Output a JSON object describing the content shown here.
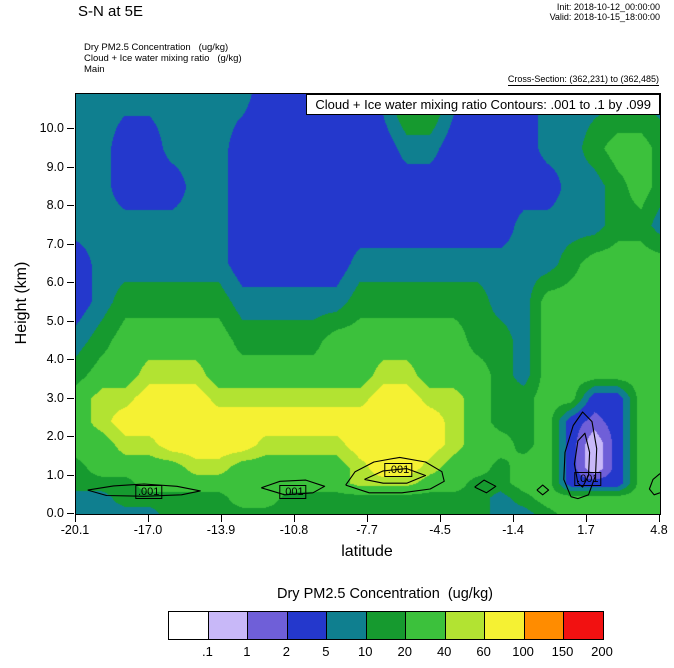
{
  "header": {
    "title": "S-N at 5E",
    "init": "Init: 2018-10-12_00:00:00",
    "valid": "Valid: 2018-10-15_18:00:00",
    "subtitle1": "Dry PM2.5 Concentration   (ug/kg)",
    "subtitle2": "Cloud + Ice water mixing ratio   (g/kg)",
    "subtitle3": "Main",
    "cross_section": "Cross-Section: (362,231) to (362,485)"
  },
  "chart_data": {
    "type": "filled_contour",
    "title": "Cloud + Ice water mixing ratio Contours: .001 to .1 by .099",
    "xlabel": "latitude",
    "ylabel": "Height (km)",
    "x_range": [
      -20.1,
      4.8
    ],
    "y_range": [
      0,
      10.91
    ],
    "x_ticks": [
      "-20.1",
      "-17.0",
      "-13.9",
      "-10.8",
      "-7.7",
      "-4.5",
      "-1.4",
      "1.7",
      "4.8"
    ],
    "y_ticks": [
      "0.0",
      "1.0",
      "2.0",
      "3.0",
      "4.0",
      "5.0",
      "6.0",
      "7.0",
      "8.0",
      "9.0",
      "10.0"
    ],
    "grid": {
      "lats": [
        -20.1,
        -19,
        -18,
        -17,
        -16,
        -15,
        -14,
        -13,
        -12,
        -11,
        -10,
        -9,
        -8,
        -7,
        -6,
        -5,
        -4,
        -3,
        -2,
        -1,
        0,
        1,
        2,
        3,
        4,
        4.8
      ],
      "heights": [
        0,
        0.4,
        0.8,
        1.2,
        1.8,
        2.4,
        3.0,
        3.6,
        4.5,
        5.5,
        6.5,
        7.5,
        8.5,
        9.5,
        10.91
      ],
      "pm25": [
        [
          7,
          7,
          7,
          7,
          15,
          15,
          15,
          15,
          15,
          15,
          15,
          15,
          15,
          15,
          15,
          15,
          15,
          15,
          7,
          7,
          15,
          30,
          30,
          30,
          30,
          30
        ],
        [
          7,
          7,
          15,
          15,
          15,
          15,
          15,
          30,
          30,
          15,
          15,
          15,
          15,
          15,
          15,
          15,
          15,
          15,
          7,
          15,
          30,
          30,
          30,
          30,
          30,
          30
        ],
        [
          15,
          15,
          15,
          30,
          30,
          30,
          30,
          30,
          30,
          30,
          30,
          30,
          50,
          50,
          50,
          30,
          30,
          15,
          15,
          30,
          30,
          3,
          3,
          3,
          30,
          30
        ],
        [
          15,
          30,
          30,
          30,
          30,
          50,
          50,
          30,
          30,
          30,
          30,
          30,
          50,
          80,
          80,
          50,
          30,
          30,
          15,
          30,
          30,
          3,
          0.5,
          3,
          30,
          30
        ],
        [
          30,
          30,
          50,
          50,
          80,
          80,
          80,
          80,
          50,
          50,
          50,
          50,
          80,
          80,
          80,
          80,
          50,
          30,
          30,
          15,
          30,
          3,
          0.5,
          3,
          30,
          30
        ],
        [
          30,
          50,
          80,
          80,
          80,
          80,
          80,
          80,
          80,
          80,
          80,
          80,
          80,
          80,
          80,
          80,
          50,
          30,
          15,
          15,
          30,
          3,
          1.5,
          3,
          30,
          30
        ],
        [
          30,
          50,
          50,
          80,
          80,
          80,
          50,
          50,
          50,
          50,
          50,
          50,
          50,
          80,
          80,
          50,
          50,
          30,
          15,
          15,
          30,
          30,
          3,
          3,
          30,
          30
        ],
        [
          15,
          30,
          30,
          50,
          50,
          50,
          30,
          30,
          30,
          30,
          30,
          30,
          30,
          50,
          50,
          30,
          30,
          30,
          15,
          7,
          30,
          30,
          30,
          30,
          30,
          30
        ],
        [
          7,
          15,
          30,
          30,
          30,
          30,
          30,
          15,
          15,
          15,
          15,
          30,
          30,
          30,
          30,
          30,
          30,
          15,
          15,
          7,
          30,
          30,
          30,
          30,
          30,
          30
        ],
        [
          3,
          7,
          15,
          15,
          15,
          15,
          15,
          7,
          7,
          7,
          7,
          7,
          15,
          15,
          15,
          15,
          15,
          15,
          7,
          7,
          30,
          30,
          30,
          30,
          30,
          30
        ],
        [
          3,
          7,
          7,
          7,
          7,
          7,
          7,
          3,
          3,
          3,
          3,
          3,
          7,
          7,
          7,
          7,
          7,
          7,
          7,
          7,
          7,
          15,
          30,
          30,
          30,
          30
        ],
        [
          7,
          7,
          7,
          7,
          7,
          7,
          7,
          3,
          3,
          3,
          3,
          3,
          3,
          3,
          3,
          3,
          3,
          3,
          3,
          7,
          7,
          7,
          7,
          15,
          15,
          7
        ],
        [
          7,
          7,
          3,
          3,
          3,
          7,
          7,
          3,
          3,
          3,
          3,
          3,
          3,
          3,
          3,
          3,
          3,
          3,
          3,
          3,
          3,
          7,
          7,
          15,
          30,
          15
        ],
        [
          7,
          7,
          3,
          3,
          7,
          7,
          7,
          3,
          3,
          3,
          3,
          3,
          3,
          3,
          7,
          7,
          3,
          3,
          3,
          3,
          7,
          7,
          15,
          30,
          30,
          15
        ],
        [
          7,
          7,
          7,
          7,
          7,
          7,
          7,
          7,
          3,
          3,
          3,
          3,
          3,
          7,
          30,
          30,
          7,
          3,
          3,
          3,
          7,
          7,
          7,
          7,
          7,
          7
        ]
      ]
    },
    "contours": {
      "label": ".001",
      "labels": [
        {
          "x": -17.0,
          "y": 0.58
        },
        {
          "x": -10.85,
          "y": 0.56
        },
        {
          "x": -6.35,
          "y": 1.15
        },
        {
          "x": 1.72,
          "y": 0.9
        }
      ],
      "paths": [
        [
          [
            -19.6,
            0.62
          ],
          [
            -18.5,
            0.73
          ],
          [
            -17.2,
            0.78
          ],
          [
            -15.8,
            0.72
          ],
          [
            -14.8,
            0.6
          ],
          [
            -15.6,
            0.5
          ],
          [
            -17.2,
            0.46
          ],
          [
            -18.8,
            0.48
          ],
          [
            -19.6,
            0.62
          ]
        ],
        [
          [
            -12.2,
            0.68
          ],
          [
            -11.4,
            0.85
          ],
          [
            -10.3,
            0.88
          ],
          [
            -9.5,
            0.72
          ],
          [
            -10.0,
            0.55
          ],
          [
            -11.2,
            0.5
          ],
          [
            -12.2,
            0.68
          ]
        ],
        [
          [
            -8.6,
            0.75
          ],
          [
            -8.2,
            1.1
          ],
          [
            -7.4,
            1.35
          ],
          [
            -6.3,
            1.47
          ],
          [
            -5.2,
            1.35
          ],
          [
            -4.5,
            1.1
          ],
          [
            -4.4,
            0.85
          ],
          [
            -5.0,
            0.65
          ],
          [
            -6.2,
            0.55
          ],
          [
            -7.6,
            0.55
          ],
          [
            -8.6,
            0.75
          ]
        ],
        [
          [
            -7.8,
            0.9
          ],
          [
            -7.0,
            1.12
          ],
          [
            -6.0,
            1.18
          ],
          [
            -5.2,
            1.0
          ],
          [
            -6.0,
            0.8
          ],
          [
            -7.0,
            0.8
          ],
          [
            -7.8,
            0.9
          ]
        ],
        [
          [
            -3.1,
            0.7
          ],
          [
            -2.7,
            0.88
          ],
          [
            -2.2,
            0.72
          ],
          [
            -2.6,
            0.55
          ],
          [
            -3.1,
            0.7
          ]
        ],
        [
          [
            -0.45,
            0.62
          ],
          [
            -0.2,
            0.75
          ],
          [
            0.05,
            0.62
          ],
          [
            -0.2,
            0.5
          ],
          [
            -0.45,
            0.62
          ]
        ],
        [
          [
            1.0,
            0.45
          ],
          [
            0.7,
            0.9
          ],
          [
            0.75,
            1.6
          ],
          [
            1.1,
            2.3
          ],
          [
            1.5,
            2.65
          ],
          [
            1.9,
            2.4
          ],
          [
            2.1,
            1.7
          ],
          [
            2.05,
            1.0
          ],
          [
            1.75,
            0.5
          ],
          [
            1.3,
            0.4
          ],
          [
            1.0,
            0.45
          ]
        ],
        [
          [
            1.3,
            0.8
          ],
          [
            1.15,
            1.3
          ],
          [
            1.3,
            1.9
          ],
          [
            1.6,
            2.1
          ],
          [
            1.8,
            1.6
          ],
          [
            1.75,
            1.0
          ],
          [
            1.5,
            0.7
          ],
          [
            1.3,
            0.8
          ]
        ],
        [
          [
            4.8,
            1.05
          ],
          [
            4.5,
            0.9
          ],
          [
            4.35,
            0.65
          ],
          [
            4.55,
            0.5
          ],
          [
            4.8,
            0.55
          ]
        ]
      ]
    },
    "colorbar": {
      "title": "Dry PM2.5 Concentration  (ug/kg)",
      "labels": [
        ".1",
        "1",
        "2",
        "5",
        "10",
        "20",
        "40",
        "60",
        "100",
        "150",
        "200"
      ],
      "thresholds": [
        0.1,
        1,
        2,
        5,
        10,
        20,
        40,
        60,
        100,
        150,
        200
      ],
      "colors": [
        "#ffffff",
        "#c8b8f8",
        "#6f5fd8",
        "#2438cc",
        "#0f7f8f",
        "#169a2f",
        "#3cc13c",
        "#b2e332",
        "#f5f133",
        "#ff8c00",
        "#f21111"
      ],
      "position": "bottom"
    }
  }
}
